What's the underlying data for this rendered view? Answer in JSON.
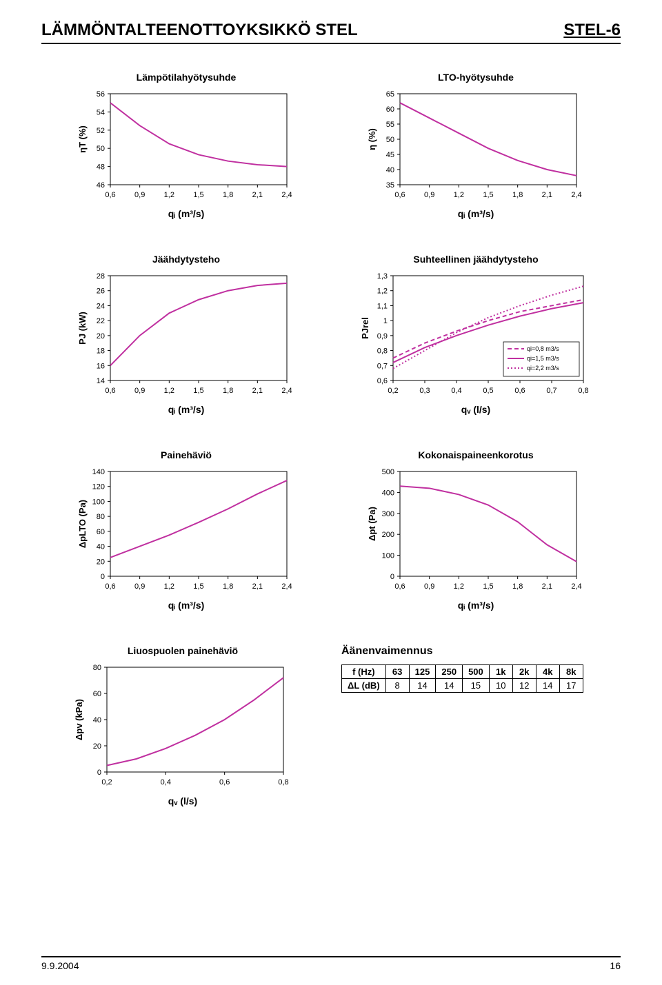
{
  "header": {
    "left": "LÄMMÖNTALTEENOTTOYKSIKKÖ STEL",
    "right": "STEL-6"
  },
  "footer": {
    "date": "9.9.2004",
    "page": "16"
  },
  "axis_label_qi": "qᵢ (m³/s)",
  "axis_label_qv": "qᵥ (l/s)",
  "chart1": {
    "title": "Lämpötilahyötysuhde",
    "type": "line",
    "x": [
      0.6,
      0.9,
      1.2,
      1.5,
      1.8,
      2.1,
      2.4
    ],
    "y": [
      55,
      52.5,
      50.5,
      49.3,
      48.6,
      48.2,
      48
    ],
    "xticks": [
      "0,6",
      "0,9",
      "1,2",
      "1,5",
      "1,8",
      "2,1",
      "2,4"
    ],
    "yticks": [
      46,
      48,
      50,
      52,
      54,
      56
    ],
    "ylim": [
      46,
      56
    ],
    "xlim": [
      0.6,
      2.4
    ],
    "ylabel": "ηT (%)",
    "line_color": "#c030a0",
    "line_width": 2,
    "grid_color": "#000000",
    "background": "#ffffff"
  },
  "chart2": {
    "title": "LTO-hyötysuhde",
    "type": "line",
    "x": [
      0.6,
      0.9,
      1.2,
      1.5,
      1.8,
      2.1,
      2.4
    ],
    "y": [
      62,
      57,
      52,
      47,
      43,
      40,
      38
    ],
    "xticks": [
      "0,6",
      "0,9",
      "1,2",
      "1,5",
      "1,8",
      "2,1",
      "2,4"
    ],
    "yticks": [
      35,
      40,
      45,
      50,
      55,
      60,
      65
    ],
    "ylim": [
      35,
      65
    ],
    "xlim": [
      0.6,
      2.4
    ],
    "ylabel": "η (%)",
    "line_color": "#c030a0",
    "line_width": 2
  },
  "chart3": {
    "title": "Jäähdytysteho",
    "type": "line",
    "x": [
      0.6,
      0.9,
      1.2,
      1.5,
      1.8,
      2.1,
      2.4
    ],
    "y": [
      16,
      20,
      23,
      24.8,
      26,
      26.7,
      27
    ],
    "xticks": [
      "0,6",
      "0,9",
      "1,2",
      "1,5",
      "1,8",
      "2,1",
      "2,4"
    ],
    "yticks": [
      14,
      16,
      18,
      20,
      22,
      24,
      26,
      28
    ],
    "ylim": [
      14,
      28
    ],
    "xlim": [
      0.6,
      2.4
    ],
    "ylabel": "PJ (kW)",
    "line_color": "#c030a0",
    "line_width": 2
  },
  "chart4": {
    "title": "Suhteellinen jäähdytysteho",
    "type": "multiline",
    "series": [
      {
        "label": "qi=0,8 m3/s",
        "style": "dashed",
        "color": "#c030a0",
        "x": [
          0.2,
          0.3,
          0.4,
          0.5,
          0.6,
          0.7,
          0.8
        ],
        "y": [
          0.75,
          0.85,
          0.93,
          1.0,
          1.06,
          1.1,
          1.14
        ]
      },
      {
        "label": "qi=1,5 m3/s",
        "style": "solid",
        "color": "#c030a0",
        "x": [
          0.2,
          0.3,
          0.4,
          0.5,
          0.6,
          0.7,
          0.8
        ],
        "y": [
          0.72,
          0.82,
          0.9,
          0.97,
          1.03,
          1.08,
          1.12
        ]
      },
      {
        "label": "qi=2,2 m3/s",
        "style": "dotted",
        "color": "#c030a0",
        "x": [
          0.2,
          0.3,
          0.4,
          0.5,
          0.6,
          0.7,
          0.8
        ],
        "y": [
          0.68,
          0.8,
          0.92,
          1.02,
          1.1,
          1.17,
          1.23
        ]
      }
    ],
    "xticks": [
      "0,2",
      "0,3",
      "0,4",
      "0,5",
      "0,6",
      "0,7",
      "0,8"
    ],
    "yticks": [
      "0,6",
      "0,7",
      "0,8",
      "0,9",
      "1",
      "1,1",
      "1,2",
      "1,3"
    ],
    "ylim": [
      0.6,
      1.3
    ],
    "xlim": [
      0.2,
      0.8
    ],
    "ylabel": "PJrel",
    "legend_pos": "lower-right"
  },
  "chart5": {
    "title": "Painehäviö",
    "type": "line",
    "x": [
      0.6,
      0.9,
      1.2,
      1.5,
      1.8,
      2.1,
      2.4
    ],
    "y": [
      25,
      40,
      55,
      72,
      90,
      110,
      128
    ],
    "xticks": [
      "0,6",
      "0,9",
      "1,2",
      "1,5",
      "1,8",
      "2,1",
      "2,4"
    ],
    "yticks": [
      0,
      20,
      40,
      60,
      80,
      100,
      120,
      140
    ],
    "ylim": [
      0,
      140
    ],
    "xlim": [
      0.6,
      2.4
    ],
    "ylabel": "ΔpLTO (Pa)",
    "line_color": "#c030a0",
    "line_width": 2
  },
  "chart6": {
    "title": "Kokonaispaineenkorotus",
    "type": "line",
    "x": [
      0.6,
      0.9,
      1.2,
      1.5,
      1.8,
      2.1,
      2.4
    ],
    "y": [
      430,
      420,
      390,
      340,
      260,
      150,
      70
    ],
    "xticks": [
      "0,6",
      "0,9",
      "1,2",
      "1,5",
      "1,8",
      "2,1",
      "2,4"
    ],
    "yticks": [
      0,
      100,
      200,
      300,
      400,
      500
    ],
    "ylim": [
      0,
      500
    ],
    "xlim": [
      0.6,
      2.4
    ],
    "ylabel": "Δpt (Pa)",
    "line_color": "#c030a0",
    "line_width": 2
  },
  "chart7": {
    "title": "Liuospuolen painehäviö",
    "type": "line",
    "x": [
      0.2,
      0.3,
      0.4,
      0.5,
      0.6,
      0.7,
      0.8
    ],
    "y": [
      5,
      10,
      18,
      28,
      40,
      55,
      72
    ],
    "xticks": [
      "0,2",
      "0,4",
      "0,6",
      "0,8"
    ],
    "xtickvals": [
      0.2,
      0.4,
      0.6,
      0.8
    ],
    "yticks": [
      0,
      20,
      40,
      60,
      80
    ],
    "ylim": [
      0,
      80
    ],
    "xlim": [
      0.2,
      0.8
    ],
    "ylabel": "Δpv (kPa)",
    "line_color": "#c030a0",
    "line_width": 2
  },
  "sound": {
    "title": "Äänenvaimennus",
    "header_label": "f (Hz)",
    "row_label": "ΔL (dB)",
    "freqs": [
      "63",
      "125",
      "250",
      "500",
      "1k",
      "2k",
      "4k",
      "8k"
    ],
    "vals": [
      8,
      14,
      14,
      15,
      10,
      12,
      14,
      17
    ]
  }
}
